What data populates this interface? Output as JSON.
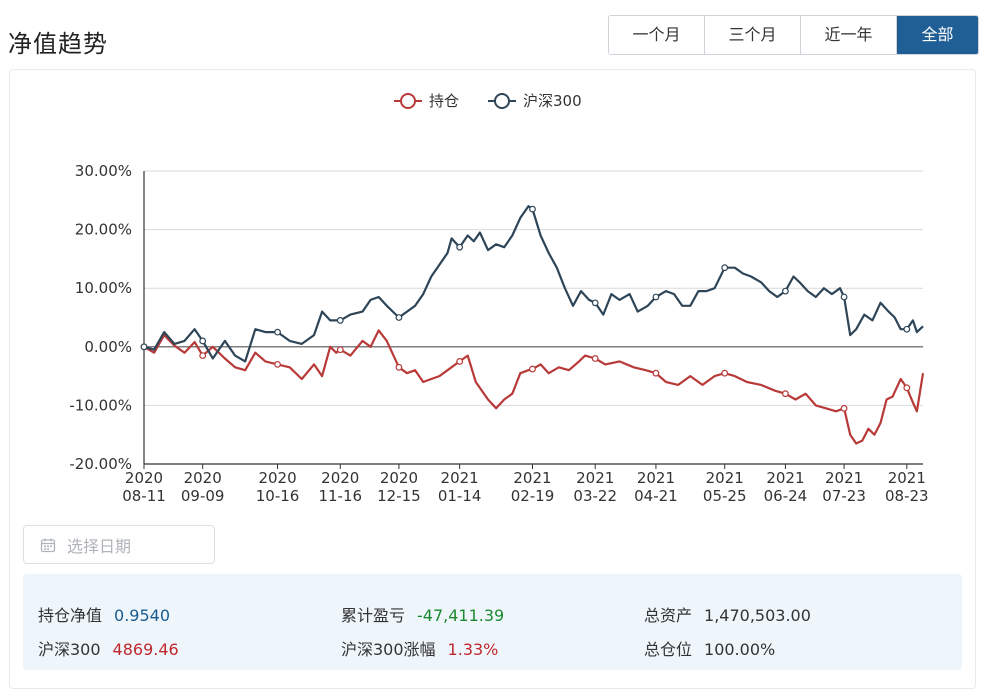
{
  "page": {
    "title": "净值趋势",
    "range_tabs": [
      {
        "label": "一个月",
        "active": false
      },
      {
        "label": "三个月",
        "active": false
      },
      {
        "label": "近一年",
        "active": false
      },
      {
        "label": "全部",
        "active": true
      }
    ]
  },
  "colors": {
    "holding": "#b83a38",
    "index": "#2e4558",
    "accent": "#1f5f96"
  },
  "chart_data": {
    "type": "line",
    "title": "",
    "xlabel": "",
    "ylabel": "",
    "ylim": [
      -20,
      30
    ],
    "y_ticks": [
      "30.00%",
      "20.00%",
      "10.00%",
      "0.00%",
      "-10.00%",
      "-20.00%"
    ],
    "y_tick_values": [
      30,
      20,
      10,
      0,
      -10,
      -20
    ],
    "x_ticks": [
      {
        "year": "2020",
        "date": "08-11",
        "day": 0
      },
      {
        "year": "2020",
        "date": "09-09",
        "day": 29
      },
      {
        "year": "2020",
        "date": "10-16",
        "day": 66
      },
      {
        "year": "2020",
        "date": "11-16",
        "day": 97
      },
      {
        "year": "2020",
        "date": "12-15",
        "day": 126
      },
      {
        "year": "2021",
        "date": "01-14",
        "day": 156
      },
      {
        "year": "2021",
        "date": "02-19",
        "day": 192
      },
      {
        "year": "2021",
        "date": "03-22",
        "day": 223
      },
      {
        "year": "2021",
        "date": "04-21",
        "day": 253
      },
      {
        "year": "2021",
        "date": "05-25",
        "day": 287
      },
      {
        "year": "2021",
        "date": "06-24",
        "day": 317
      },
      {
        "year": "2021",
        "date": "07-23",
        "day": 346
      },
      {
        "year": "2021",
        "date": "08-23",
        "day": 377
      }
    ],
    "x_range_days": [
      0,
      385
    ],
    "grid": true,
    "legend_position": "top-center",
    "series": [
      {
        "name": "持仓",
        "color": "#b83a38",
        "points": [
          [
            0,
            0.0
          ],
          [
            5,
            -1.0
          ],
          [
            10,
            2.0
          ],
          [
            15,
            0.2
          ],
          [
            20,
            -1.0
          ],
          [
            25,
            0.8
          ],
          [
            29,
            -1.5
          ],
          [
            34,
            0.0
          ],
          [
            40,
            -2.0
          ],
          [
            45,
            -3.5
          ],
          [
            50,
            -4.0
          ],
          [
            55,
            -1.0
          ],
          [
            60,
            -2.5
          ],
          [
            66,
            -3.0
          ],
          [
            72,
            -3.5
          ],
          [
            78,
            -5.5
          ],
          [
            84,
            -3.0
          ],
          [
            88,
            -5.0
          ],
          [
            92,
            0.0
          ],
          [
            95,
            -1.0
          ],
          [
            97,
            -0.5
          ],
          [
            102,
            -1.5
          ],
          [
            108,
            1.0
          ],
          [
            112,
            0.0
          ],
          [
            116,
            2.8
          ],
          [
            120,
            1.0
          ],
          [
            126,
            -3.5
          ],
          [
            130,
            -4.5
          ],
          [
            134,
            -4.0
          ],
          [
            138,
            -6.0
          ],
          [
            142,
            -5.5
          ],
          [
            146,
            -5.0
          ],
          [
            150,
            -4.0
          ],
          [
            156,
            -2.5
          ],
          [
            160,
            -1.5
          ],
          [
            164,
            -6.0
          ],
          [
            170,
            -9.0
          ],
          [
            174,
            -10.5
          ],
          [
            178,
            -9.0
          ],
          [
            182,
            -8.0
          ],
          [
            186,
            -4.5
          ],
          [
            190,
            -4.0
          ],
          [
            192,
            -3.8
          ],
          [
            196,
            -3.0
          ],
          [
            200,
            -4.5
          ],
          [
            205,
            -3.5
          ],
          [
            210,
            -4.0
          ],
          [
            215,
            -2.5
          ],
          [
            218,
            -1.5
          ],
          [
            223,
            -2.0
          ],
          [
            228,
            -3.0
          ],
          [
            235,
            -2.5
          ],
          [
            242,
            -3.5
          ],
          [
            248,
            -4.0
          ],
          [
            253,
            -4.5
          ],
          [
            258,
            -6.0
          ],
          [
            264,
            -6.5
          ],
          [
            270,
            -5.0
          ],
          [
            276,
            -6.5
          ],
          [
            282,
            -5.0
          ],
          [
            287,
            -4.5
          ],
          [
            292,
            -5.0
          ],
          [
            298,
            -6.0
          ],
          [
            305,
            -6.5
          ],
          [
            312,
            -7.5
          ],
          [
            317,
            -8.0
          ],
          [
            322,
            -9.0
          ],
          [
            327,
            -8.0
          ],
          [
            332,
            -10.0
          ],
          [
            337,
            -10.5
          ],
          [
            342,
            -11.0
          ],
          [
            346,
            -10.5
          ],
          [
            349,
            -15.0
          ],
          [
            352,
            -16.5
          ],
          [
            355,
            -16.0
          ],
          [
            358,
            -14.0
          ],
          [
            361,
            -15.0
          ],
          [
            364,
            -13.0
          ],
          [
            367,
            -9.0
          ],
          [
            370,
            -8.5
          ],
          [
            374,
            -5.5
          ],
          [
            377,
            -7.0
          ],
          [
            380,
            -9.5
          ],
          [
            382,
            -11.0
          ],
          [
            385,
            -4.5
          ]
        ]
      },
      {
        "name": "沪深300",
        "color": "#2e4558",
        "points": [
          [
            0,
            0.0
          ],
          [
            5,
            -0.5
          ],
          [
            10,
            2.5
          ],
          [
            15,
            0.5
          ],
          [
            20,
            1.0
          ],
          [
            25,
            3.0
          ],
          [
            29,
            1.0
          ],
          [
            34,
            -2.0
          ],
          [
            40,
            1.0
          ],
          [
            45,
            -1.5
          ],
          [
            50,
            -2.5
          ],
          [
            55,
            3.0
          ],
          [
            60,
            2.5
          ],
          [
            66,
            2.5
          ],
          [
            72,
            1.0
          ],
          [
            78,
            0.5
          ],
          [
            84,
            2.0
          ],
          [
            88,
            6.0
          ],
          [
            92,
            4.5
          ],
          [
            97,
            4.5
          ],
          [
            102,
            5.5
          ],
          [
            108,
            6.0
          ],
          [
            112,
            8.0
          ],
          [
            116,
            8.5
          ],
          [
            120,
            7.0
          ],
          [
            126,
            5.0
          ],
          [
            130,
            6.0
          ],
          [
            134,
            7.0
          ],
          [
            138,
            9.0
          ],
          [
            142,
            12.0
          ],
          [
            146,
            14.0
          ],
          [
            150,
            16.0
          ],
          [
            152,
            18.5
          ],
          [
            156,
            17.0
          ],
          [
            160,
            19.0
          ],
          [
            163,
            18.0
          ],
          [
            166,
            19.5
          ],
          [
            170,
            16.5
          ],
          [
            174,
            17.5
          ],
          [
            178,
            17.0
          ],
          [
            182,
            19.0
          ],
          [
            186,
            22.0
          ],
          [
            190,
            24.0
          ],
          [
            192,
            23.5
          ],
          [
            196,
            19.0
          ],
          [
            200,
            16.0
          ],
          [
            204,
            13.5
          ],
          [
            208,
            10.0
          ],
          [
            212,
            7.0
          ],
          [
            216,
            9.5
          ],
          [
            220,
            8.0
          ],
          [
            223,
            7.5
          ],
          [
            227,
            5.5
          ],
          [
            231,
            9.0
          ],
          [
            235,
            8.0
          ],
          [
            240,
            9.0
          ],
          [
            244,
            6.0
          ],
          [
            249,
            7.0
          ],
          [
            253,
            8.5
          ],
          [
            258,
            9.5
          ],
          [
            262,
            9.0
          ],
          [
            266,
            7.0
          ],
          [
            270,
            7.0
          ],
          [
            274,
            9.5
          ],
          [
            278,
            9.5
          ],
          [
            282,
            10.0
          ],
          [
            287,
            13.5
          ],
          [
            292,
            13.5
          ],
          [
            296,
            12.5
          ],
          [
            300,
            12.0
          ],
          [
            305,
            11.0
          ],
          [
            309,
            9.5
          ],
          [
            313,
            8.5
          ],
          [
            317,
            9.5
          ],
          [
            321,
            12.0
          ],
          [
            324,
            11.0
          ],
          [
            328,
            9.5
          ],
          [
            332,
            8.5
          ],
          [
            336,
            10.0
          ],
          [
            340,
            9.0
          ],
          [
            344,
            10.0
          ],
          [
            346,
            8.5
          ],
          [
            349,
            2.0
          ],
          [
            352,
            3.0
          ],
          [
            356,
            5.5
          ],
          [
            360,
            4.5
          ],
          [
            364,
            7.5
          ],
          [
            368,
            6.0
          ],
          [
            371,
            5.0
          ],
          [
            374,
            3.0
          ],
          [
            377,
            3.0
          ],
          [
            380,
            4.5
          ],
          [
            382,
            2.5
          ],
          [
            385,
            3.5
          ]
        ]
      }
    ]
  },
  "date_picker": {
    "placeholder": "选择日期"
  },
  "summary": {
    "nav_label": "持仓净值",
    "nav_value": "0.9540",
    "pnl_label": "累计盈亏",
    "pnl_value": "-47,411.39",
    "assets_label": "总资产",
    "assets_value": "1,470,503.00",
    "index_label": "沪深300",
    "index_value": "4869.46",
    "index_change_label": "沪深300涨幅",
    "index_change_value": "1.33%",
    "position_label": "总仓位",
    "position_value": "100.00%"
  }
}
